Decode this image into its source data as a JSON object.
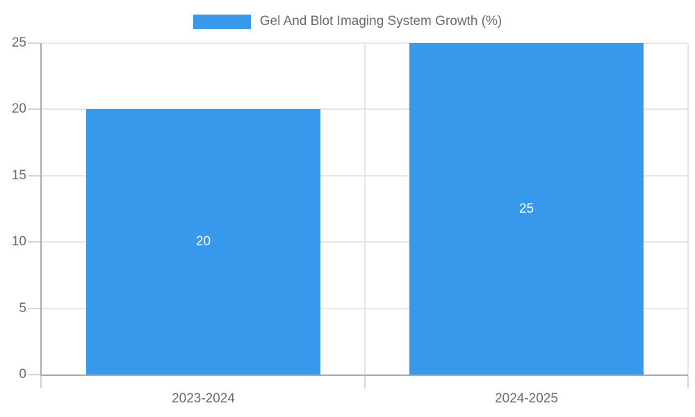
{
  "legend": {
    "label": "Gel And Blot Imaging System Growth (%)",
    "position": "top"
  },
  "chart_data": {
    "type": "bar",
    "title": "Gel And Blot Imaging System Growth (%)",
    "categories": [
      "2023-2024",
      "2024-2025"
    ],
    "values": [
      20,
      25
    ],
    "data_labels": [
      "20",
      "25"
    ],
    "series": [
      {
        "name": "Gel And Blot Imaging System Growth (%)",
        "values": [
          20,
          25
        ]
      }
    ],
    "xlabel": "",
    "ylabel": "",
    "ylim": [
      0,
      25
    ],
    "yticks": [
      0,
      5,
      10,
      15,
      20,
      25
    ],
    "grid": true,
    "legend_position": "top",
    "colors": {
      "bar": "#3899ec",
      "data_label": "#ffffff",
      "axis_text": "#6b6b6b",
      "grid_line": "#e6e6e6",
      "axis_line": "#adadad",
      "tick": "#d4d4d4",
      "background": "#ffffff"
    }
  }
}
